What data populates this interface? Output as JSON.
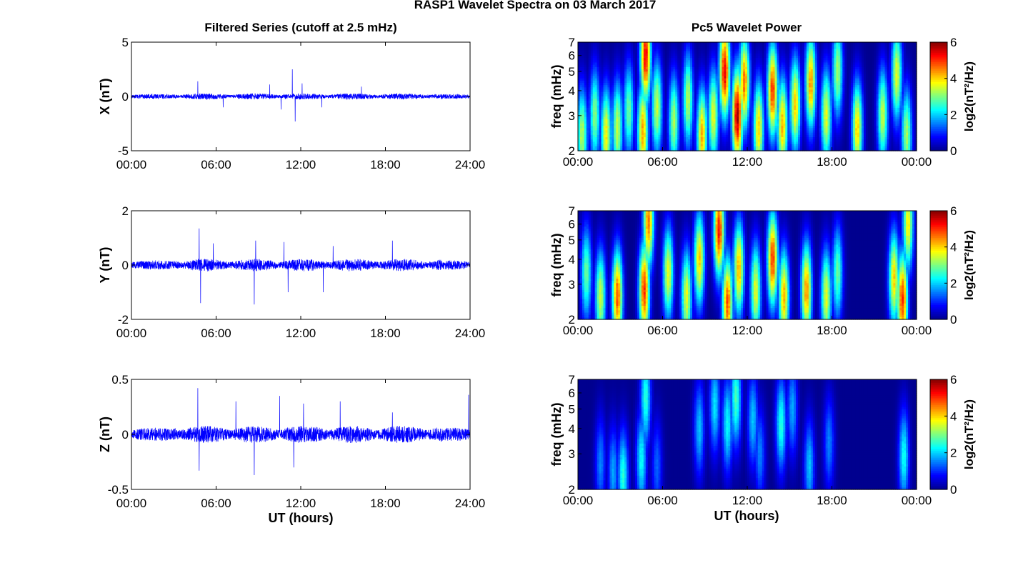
{
  "figure_title": "RASP1 Wavelet Spectra on 03 March 2017",
  "left_column_title": "Filtered Series (cutoff at 2.5 mHz)",
  "right_column_title": "Pc5 Wavelet Power",
  "x_label": "UT (hours)",
  "colors": {
    "trace": "#0000ff",
    "axes": "#000000",
    "background": "#ffffff"
  },
  "chart_data": [
    {
      "type": "line",
      "component": "X",
      "ylabel": "X (nT)",
      "ylim": [
        -5,
        5
      ],
      "yticks": [
        "5",
        "0",
        "-5"
      ],
      "xlim": [
        0,
        24
      ],
      "xticks": [
        "00:00",
        "06:00",
        "12:00",
        "18:00",
        "24:00"
      ],
      "noise_amplitude": 0.25,
      "spikes": [
        {
          "x": 4.7,
          "y": 1.4
        },
        {
          "x": 6.5,
          "y": -1.0
        },
        {
          "x": 9.8,
          "y": 1.1
        },
        {
          "x": 10.6,
          "y": -1.2
        },
        {
          "x": 11.4,
          "y": 2.5
        },
        {
          "x": 11.6,
          "y": -2.3
        },
        {
          "x": 12.1,
          "y": 1.2
        },
        {
          "x": 13.5,
          "y": -1.0
        },
        {
          "x": 16.3,
          "y": 0.9
        }
      ]
    },
    {
      "type": "line",
      "component": "Y",
      "ylabel": "Y (nT)",
      "ylim": [
        -2,
        2
      ],
      "yticks": [
        "2",
        "0",
        "-2"
      ],
      "xlim": [
        0,
        24
      ],
      "xticks": [
        "00:00",
        "06:00",
        "12:00",
        "18:00",
        "24:00"
      ],
      "noise_amplitude": 0.2,
      "spikes": [
        {
          "x": 4.8,
          "y": 1.35
        },
        {
          "x": 4.9,
          "y": -1.4
        },
        {
          "x": 5.8,
          "y": 0.8
        },
        {
          "x": 8.7,
          "y": -1.45
        },
        {
          "x": 8.8,
          "y": 0.9
        },
        {
          "x": 10.8,
          "y": 0.85
        },
        {
          "x": 11.1,
          "y": -1.0
        },
        {
          "x": 13.6,
          "y": -1.0
        },
        {
          "x": 14.3,
          "y": 0.7
        },
        {
          "x": 18.5,
          "y": 0.9
        }
      ]
    },
    {
      "type": "line",
      "component": "Z",
      "ylabel": "Z (nT)",
      "ylim": [
        -0.5,
        0.5
      ],
      "yticks": [
        "0.5",
        "0",
        "-0.5"
      ],
      "xlim": [
        0,
        24
      ],
      "xticks": [
        "00:00",
        "06:00",
        "12:00",
        "18:00",
        "24:00"
      ],
      "noise_amplitude": 0.07,
      "spikes": [
        {
          "x": 4.7,
          "y": 0.42
        },
        {
          "x": 4.8,
          "y": -0.33
        },
        {
          "x": 7.4,
          "y": 0.3
        },
        {
          "x": 8.7,
          "y": -0.37
        },
        {
          "x": 10.5,
          "y": 0.35
        },
        {
          "x": 11.5,
          "y": -0.3
        },
        {
          "x": 12.2,
          "y": 0.28
        },
        {
          "x": 14.8,
          "y": 0.3
        },
        {
          "x": 18.5,
          "y": 0.2
        },
        {
          "x": 23.9,
          "y": 0.36
        }
      ]
    },
    {
      "type": "heatmap",
      "component": "X",
      "ylabel": "freq (mHz)",
      "ylim": [
        2,
        7
      ],
      "yscale": "log",
      "yticks": [
        "2",
        "3",
        "4",
        "5",
        "6",
        "7"
      ],
      "xticks": [
        "00:00",
        "06:00",
        "12:00",
        "18:00",
        "00:00"
      ],
      "colorbar_label": "log2(nT²/Hz)",
      "colorbar_ticks": [
        "6",
        "4",
        "2",
        "0"
      ],
      "clim": [
        0,
        6
      ],
      "bursts": [
        {
          "t": 0.3,
          "f": 2.4,
          "p": 3.5
        },
        {
          "t": 1.2,
          "f": 3.0,
          "p": 3.2
        },
        {
          "t": 2.0,
          "f": 2.4,
          "p": 4.0
        },
        {
          "t": 2.8,
          "f": 2.6,
          "p": 3.6
        },
        {
          "t": 3.6,
          "f": 3.2,
          "p": 3.0
        },
        {
          "t": 4.6,
          "f": 2.5,
          "p": 4.5
        },
        {
          "t": 4.8,
          "f": 6.0,
          "p": 5.6
        },
        {
          "t": 5.6,
          "f": 3.3,
          "p": 3.6
        },
        {
          "t": 6.8,
          "f": 2.8,
          "p": 3.4
        },
        {
          "t": 7.8,
          "f": 3.6,
          "p": 3.5
        },
        {
          "t": 8.8,
          "f": 2.4,
          "p": 4.4
        },
        {
          "t": 9.6,
          "f": 3.0,
          "p": 3.8
        },
        {
          "t": 10.4,
          "f": 5.0,
          "p": 5.6
        },
        {
          "t": 11.3,
          "f": 3.0,
          "p": 6.0
        },
        {
          "t": 11.8,
          "f": 4.4,
          "p": 4.8
        },
        {
          "t": 12.8,
          "f": 2.6,
          "p": 4.2
        },
        {
          "t": 13.8,
          "f": 4.0,
          "p": 5.2
        },
        {
          "t": 14.5,
          "f": 2.7,
          "p": 4.4
        },
        {
          "t": 15.4,
          "f": 3.4,
          "p": 4.2
        },
        {
          "t": 16.5,
          "f": 4.4,
          "p": 4.6
        },
        {
          "t": 17.6,
          "f": 3.0,
          "p": 3.8
        },
        {
          "t": 18.4,
          "f": 5.0,
          "p": 3.4
        },
        {
          "t": 19.8,
          "f": 2.6,
          "p": 4.2
        },
        {
          "t": 21.6,
          "f": 3.0,
          "p": 3.6
        },
        {
          "t": 22.6,
          "f": 4.8,
          "p": 3.8
        },
        {
          "t": 23.3,
          "f": 2.4,
          "p": 3.4
        }
      ]
    },
    {
      "type": "heatmap",
      "component": "Y",
      "ylabel": "freq (mHz)",
      "ylim": [
        2,
        7
      ],
      "yscale": "log",
      "yticks": [
        "2",
        "3",
        "4",
        "5",
        "6",
        "7"
      ],
      "xticks": [
        "00:00",
        "06:00",
        "12:00",
        "18:00",
        "00:00"
      ],
      "colorbar_label": "log2(nT²/Hz)",
      "colorbar_ticks": [
        "6",
        "4",
        "2",
        "0"
      ],
      "clim": [
        0,
        6
      ],
      "bursts": [
        {
          "t": 0.6,
          "f": 3.4,
          "p": 3.0
        },
        {
          "t": 1.6,
          "f": 2.6,
          "p": 3.6
        },
        {
          "t": 2.8,
          "f": 2.6,
          "p": 5.0
        },
        {
          "t": 4.7,
          "f": 2.8,
          "p": 5.2
        },
        {
          "t": 5.0,
          "f": 6.2,
          "p": 4.8
        },
        {
          "t": 6.4,
          "f": 3.4,
          "p": 3.8
        },
        {
          "t": 7.7,
          "f": 2.6,
          "p": 3.8
        },
        {
          "t": 8.6,
          "f": 4.0,
          "p": 4.2
        },
        {
          "t": 10.0,
          "f": 5.6,
          "p": 5.4
        },
        {
          "t": 10.6,
          "f": 2.4,
          "p": 5.0
        },
        {
          "t": 11.4,
          "f": 3.6,
          "p": 4.4
        },
        {
          "t": 12.6,
          "f": 2.8,
          "p": 3.8
        },
        {
          "t": 13.8,
          "f": 4.0,
          "p": 5.2
        },
        {
          "t": 14.6,
          "f": 2.6,
          "p": 4.4
        },
        {
          "t": 16.2,
          "f": 2.8,
          "p": 4.6
        },
        {
          "t": 17.6,
          "f": 2.6,
          "p": 3.8
        },
        {
          "t": 18.4,
          "f": 3.4,
          "p": 3.0
        },
        {
          "t": 22.4,
          "f": 3.2,
          "p": 4.2
        },
        {
          "t": 23.0,
          "f": 2.5,
          "p": 5.2
        },
        {
          "t": 23.4,
          "f": 6.0,
          "p": 4.0
        }
      ]
    },
    {
      "type": "heatmap",
      "component": "Z",
      "ylabel": "freq (mHz)",
      "ylim": [
        2,
        7
      ],
      "yscale": "log",
      "yticks": [
        "2",
        "3",
        "4",
        "5",
        "6",
        "7"
      ],
      "xticks": [
        "00:00",
        "06:00",
        "12:00",
        "18:00",
        "00:00"
      ],
      "colorbar_label": "log2(nT²/Hz)",
      "colorbar_ticks": [
        "6",
        "4",
        "2",
        "0"
      ],
      "clim": [
        0,
        6
      ],
      "bursts": [
        {
          "t": 1.6,
          "f": 2.7,
          "p": 1.6
        },
        {
          "t": 2.5,
          "f": 2.4,
          "p": 1.8
        },
        {
          "t": 3.2,
          "f": 2.3,
          "p": 2.6
        },
        {
          "t": 4.5,
          "f": 2.8,
          "p": 2.4
        },
        {
          "t": 4.8,
          "f": 5.6,
          "p": 2.6
        },
        {
          "t": 5.6,
          "f": 2.6,
          "p": 1.4
        },
        {
          "t": 8.6,
          "f": 4.0,
          "p": 2.0
        },
        {
          "t": 9.7,
          "f": 5.2,
          "p": 2.2
        },
        {
          "t": 10.6,
          "f": 4.2,
          "p": 2.4
        },
        {
          "t": 11.2,
          "f": 5.6,
          "p": 2.8
        },
        {
          "t": 12.4,
          "f": 4.4,
          "p": 2.0
        },
        {
          "t": 12.9,
          "f": 3.0,
          "p": 1.6
        },
        {
          "t": 14.4,
          "f": 4.2,
          "p": 2.6
        },
        {
          "t": 15.2,
          "f": 5.0,
          "p": 1.8
        },
        {
          "t": 16.4,
          "f": 2.6,
          "p": 2.0
        },
        {
          "t": 17.8,
          "f": 3.4,
          "p": 1.6
        },
        {
          "t": 23.1,
          "f": 2.9,
          "p": 2.4
        }
      ]
    }
  ]
}
